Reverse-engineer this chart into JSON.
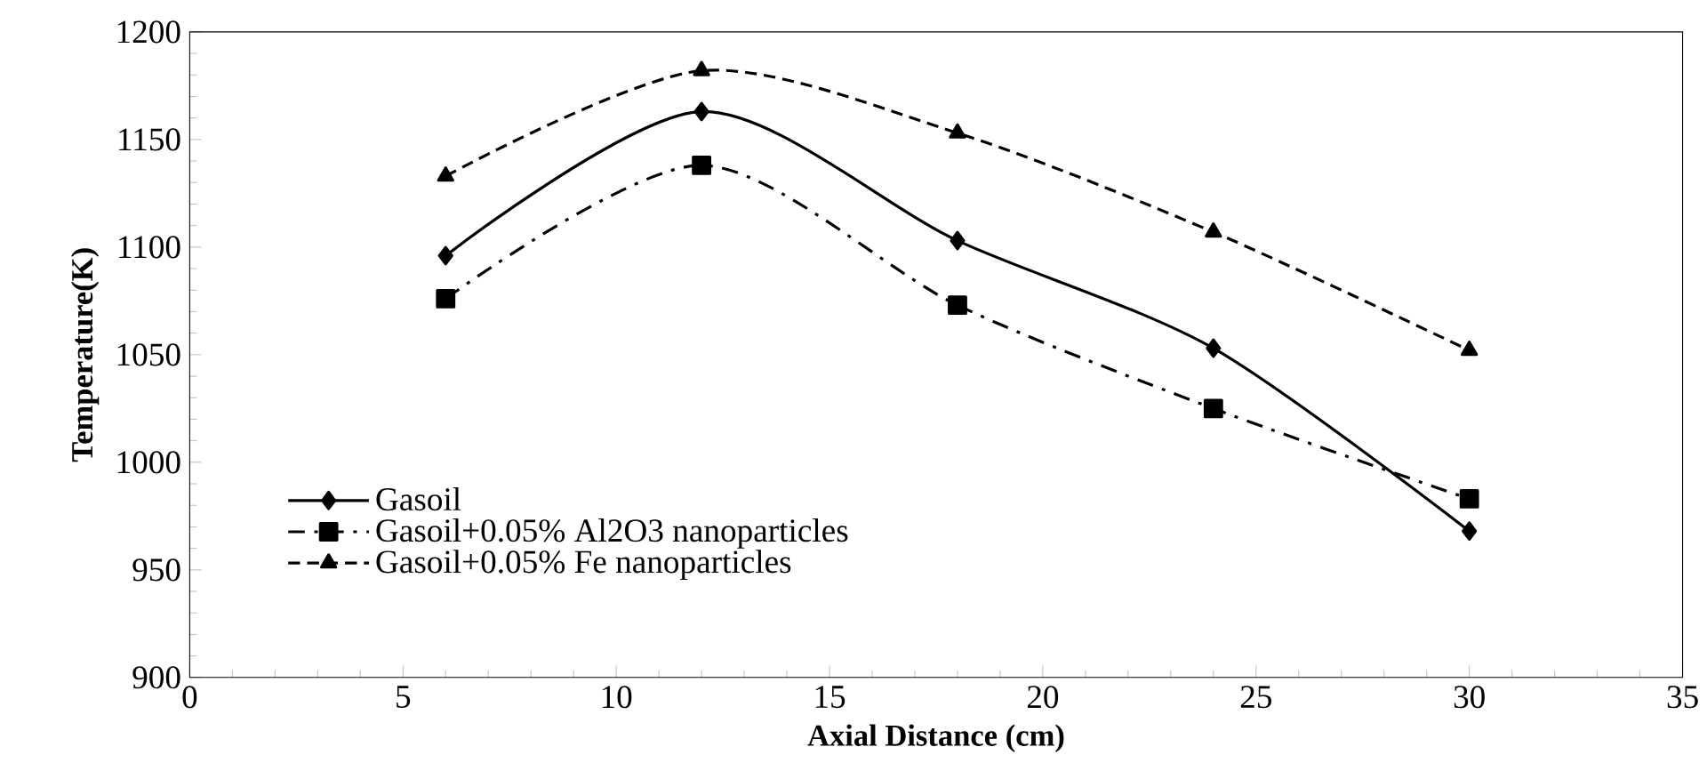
{
  "chart_data": {
    "type": "line",
    "xlabel": "Axial Distance (cm)",
    "ylabel": "Temperature(K)",
    "x": [
      6,
      12,
      18,
      24,
      30
    ],
    "series": [
      {
        "name": "Gasoil",
        "color": "#000000",
        "marker": "diamond",
        "line_style": "solid",
        "values": [
          1096,
          1163,
          1103,
          1053,
          968
        ]
      },
      {
        "name": "Gasoil+0.05%  Al2O3 nanoparticles",
        "color": "#000000",
        "marker": "square",
        "line_style": "dashdot",
        "values": [
          1076,
          1138,
          1073,
          1025,
          983
        ]
      },
      {
        "name": "Gasoil+0.05%  Fe nanoparticles",
        "color": "#000000",
        "marker": "triangle",
        "line_style": "dashed",
        "values": [
          1133,
          1182,
          1153,
          1107,
          1052
        ]
      }
    ],
    "xlim": [
      0,
      35
    ],
    "xticks": [
      0,
      5,
      10,
      15,
      20,
      25,
      30,
      35
    ],
    "ylim": [
      900,
      1200
    ],
    "yticks": [
      900,
      950,
      1000,
      1050,
      1100,
      1150,
      1200
    ],
    "grid": false,
    "legend": "bottom left"
  }
}
